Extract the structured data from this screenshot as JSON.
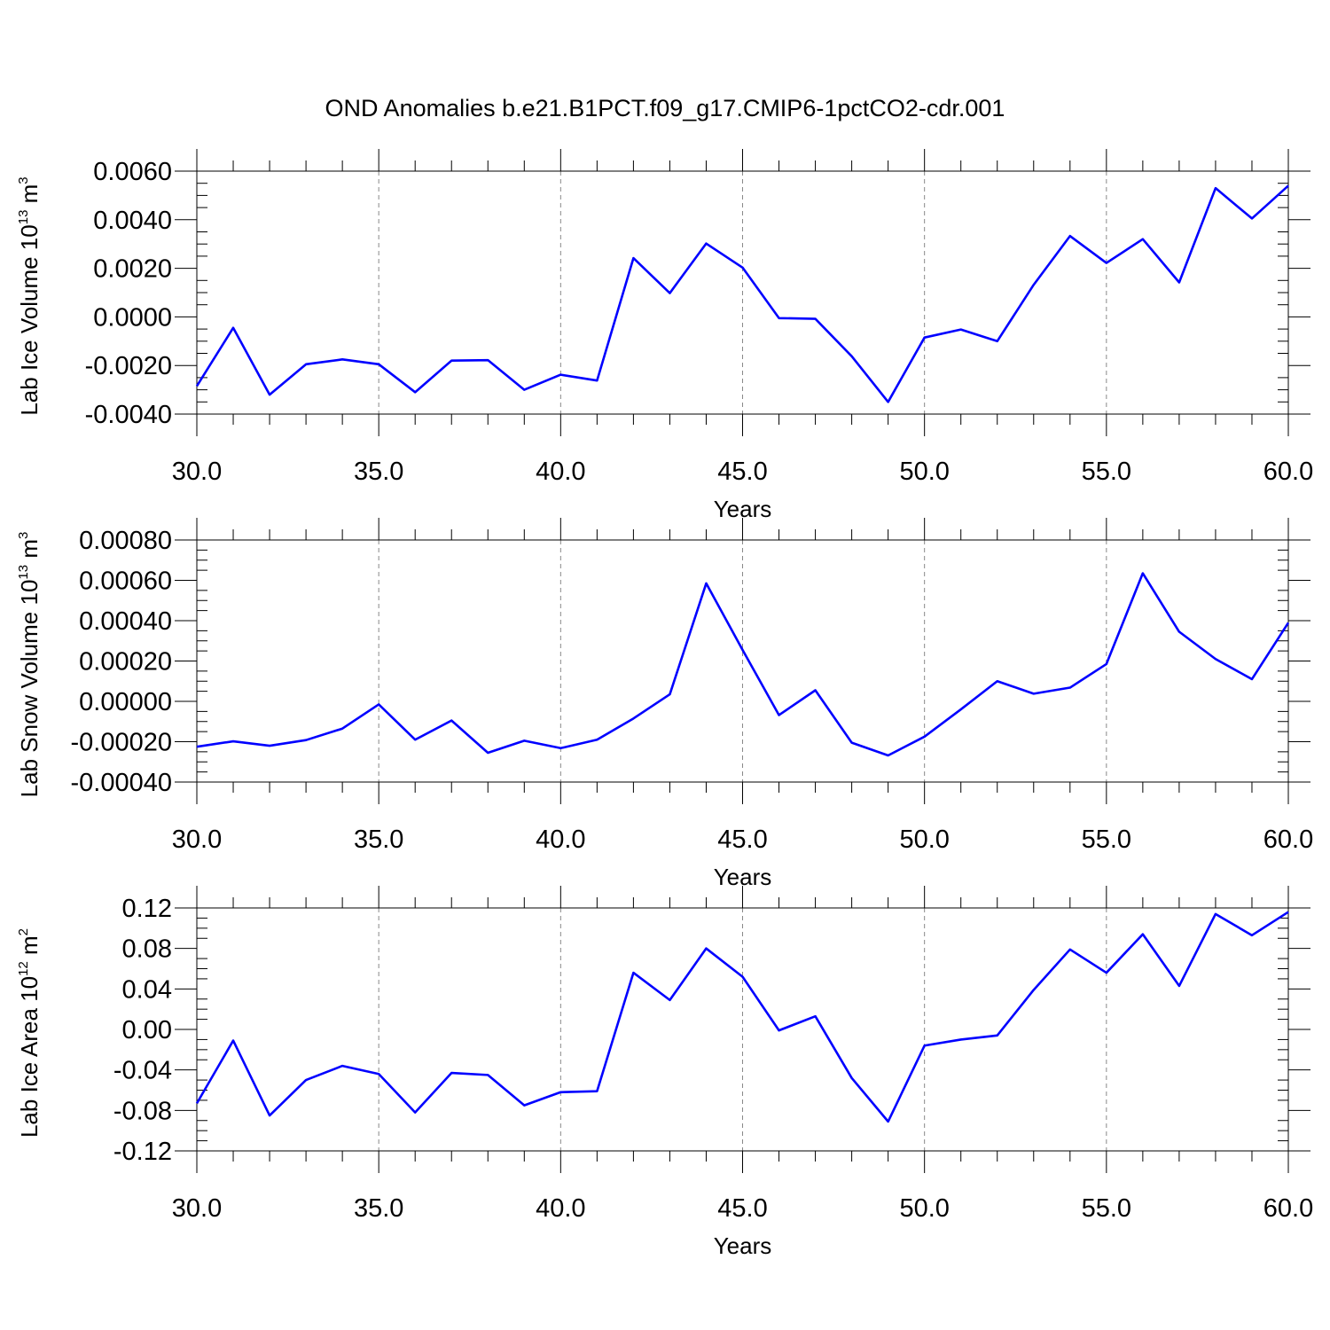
{
  "title": "OND Anomalies b.e21.B1PCT.f09_g17.CMIP6-1pctCO2-cdr.001",
  "chart_data": [
    {
      "type": "line",
      "name": "lab-ice-volume",
      "ylabel": {
        "base": "Lab Ice Volume 10",
        "exp": "13",
        "unit": " m",
        "unit_exp": "3"
      },
      "xlabel": "Years",
      "x": [
        30,
        31,
        32,
        33,
        34,
        35,
        36,
        37,
        38,
        39,
        40,
        41,
        42,
        43,
        44,
        45,
        46,
        47,
        48,
        49,
        50,
        51,
        52,
        53,
        54,
        55,
        56,
        57,
        58,
        59,
        60
      ],
      "series": [
        {
          "values": [
            -0.00285,
            -0.00045,
            -0.0032,
            -0.00195,
            -0.00175,
            -0.00195,
            -0.0031,
            -0.0018,
            -0.00178,
            -0.003,
            -0.00238,
            -0.00262,
            0.00242,
            0.00098,
            0.00302,
            0.00203,
            -5e-05,
            -8e-05,
            -0.00162,
            -0.0035,
            -0.00085,
            -0.00052,
            -0.001,
            0.00132,
            0.00333,
            0.00222,
            0.0032,
            0.00142,
            0.0053,
            0.00405,
            0.0054
          ],
          "color": "#0000ff"
        }
      ],
      "xlim": [
        30,
        60
      ],
      "ylim": [
        -0.004,
        0.006
      ],
      "yticks": [
        -0.004,
        -0.002,
        0,
        0.002,
        0.004,
        0.006
      ],
      "ytick_labels": [
        "-0.0040",
        "-0.0020",
        "0.0000",
        "0.0020",
        "0.0040",
        "0.0060"
      ],
      "yminor": 0.0005,
      "xticks": [
        30,
        35,
        40,
        45,
        50,
        55,
        60
      ],
      "xtick_labels": [
        "30.0",
        "35.0",
        "40.0",
        "45.0",
        "50.0",
        "55.0",
        "60.0"
      ],
      "grid": "vertical dashed at major x ticks"
    },
    {
      "type": "line",
      "name": "lab-snow-volume",
      "ylabel": {
        "base": "Lab Snow Volume 10",
        "exp": "13",
        "unit": " m",
        "unit_exp": "3"
      },
      "xlabel": "Years",
      "x": [
        30,
        31,
        32,
        33,
        34,
        35,
        36,
        37,
        38,
        39,
        40,
        41,
        42,
        43,
        44,
        45,
        46,
        47,
        48,
        49,
        50,
        51,
        52,
        53,
        54,
        55,
        56,
        57,
        58,
        59,
        60
      ],
      "series": [
        {
          "values": [
            -0.000225,
            -0.000198,
            -0.00022,
            -0.000192,
            -0.000135,
            -1.5e-05,
            -0.00019,
            -9.5e-05,
            -0.000255,
            -0.000195,
            -0.000232,
            -0.00019,
            -8.5e-05,
            3.5e-05,
            0.000585,
            0.000255,
            -6.8e-05,
            5.5e-05,
            -0.000205,
            -0.000268,
            -0.000175,
            -4e-05,
            0.0001,
            3.8e-05,
            6.8e-05,
            0.000185,
            0.000635,
            0.000345,
            0.00021,
            0.00011,
            0.00039
          ],
          "color": "#0000ff"
        }
      ],
      "xlim": [
        30,
        60
      ],
      "ylim": [
        -0.0004,
        0.0008
      ],
      "yticks": [
        -0.0004,
        -0.0002,
        0,
        0.0002,
        0.0004,
        0.0006,
        0.0008
      ],
      "ytick_labels": [
        "-0.00040",
        "-0.00020",
        "0.00000",
        "0.00020",
        "0.00040",
        "0.00060",
        "0.00080"
      ],
      "yminor": 5e-05,
      "xticks": [
        30,
        35,
        40,
        45,
        50,
        55,
        60
      ],
      "xtick_labels": [
        "30.0",
        "35.0",
        "40.0",
        "45.0",
        "50.0",
        "55.0",
        "60.0"
      ],
      "grid": "vertical dashed at major x ticks"
    },
    {
      "type": "line",
      "name": "lab-ice-area",
      "ylabel": {
        "base": "Lab Ice Area 10",
        "exp": "12",
        "unit": " m",
        "unit_exp": "2"
      },
      "xlabel": "Years",
      "x": [
        30,
        31,
        32,
        33,
        34,
        35,
        36,
        37,
        38,
        39,
        40,
        41,
        42,
        43,
        44,
        45,
        46,
        47,
        48,
        49,
        50,
        51,
        52,
        53,
        54,
        55,
        56,
        57,
        58,
        59,
        60
      ],
      "series": [
        {
          "values": [
            -0.073,
            -0.011,
            -0.085,
            -0.05,
            -0.036,
            -0.044,
            -0.082,
            -0.043,
            -0.045,
            -0.075,
            -0.062,
            -0.061,
            0.056,
            0.029,
            0.08,
            0.052,
            -0.001,
            0.013,
            -0.048,
            -0.091,
            -0.016,
            -0.01,
            -0.006,
            0.039,
            0.079,
            0.056,
            0.094,
            0.043,
            0.114,
            0.093,
            0.116
          ],
          "color": "#0000ff"
        }
      ],
      "xlim": [
        30,
        60
      ],
      "ylim": [
        -0.12,
        0.12
      ],
      "yticks": [
        -0.12,
        -0.08,
        -0.04,
        0,
        0.04,
        0.08,
        0.12
      ],
      "ytick_labels": [
        "-0.12",
        "-0.08",
        "-0.04",
        "0.00",
        "0.04",
        "0.08",
        "0.12"
      ],
      "yminor": 0.01,
      "xticks": [
        30,
        35,
        40,
        45,
        50,
        55,
        60
      ],
      "xtick_labels": [
        "30.0",
        "35.0",
        "40.0",
        "45.0",
        "50.0",
        "55.0",
        "60.0"
      ],
      "grid": "vertical dashed at major x ticks"
    }
  ]
}
